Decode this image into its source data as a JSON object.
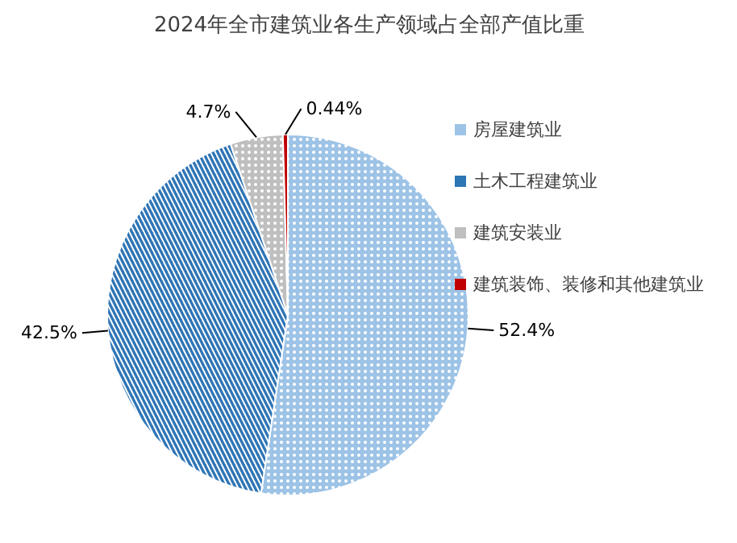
{
  "chart_data": {
    "type": "pie",
    "title": "2024年全市建筑业各生产领域占全部产值比重",
    "categories": [
      "房屋建筑业",
      "土木工程建筑业",
      "建筑安装业",
      "建筑装饰、装修和其他建筑业"
    ],
    "values": [
      52.4,
      42.5,
      4.7,
      0.44
    ],
    "colors": [
      "#9dc3e6",
      "#2e75b6",
      "#bfbfbf",
      "#c00000"
    ],
    "value_labels": [
      "52.4%",
      "42.5%",
      "4.7%",
      "0.44%"
    ],
    "legend": "right"
  }
}
